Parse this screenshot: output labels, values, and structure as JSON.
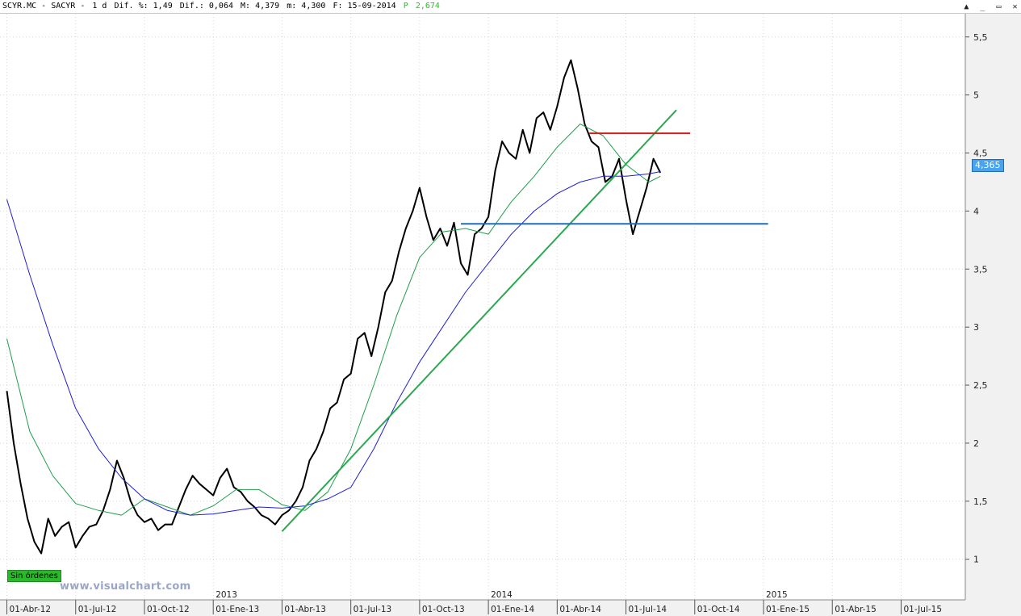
{
  "header": {
    "ticker": "SCYR.MC - SACYR -",
    "timeframe": "1 d",
    "pct_change": "Dif. %: 1,49",
    "abs_change": "Dif.: 0,064",
    "high": "M: 4,379",
    "low": "m: 4,300",
    "date": "F: 15-09-2014",
    "p_label": "P",
    "p_value": "2,674"
  },
  "window_buttons": [
    "▲",
    "_",
    "▭",
    "✕"
  ],
  "badge": "Sin órdenes",
  "watermark": "www.visualchart.com",
  "price_tag": "4,365",
  "chart_data": {
    "type": "line",
    "title": "",
    "x_tick_labels": [
      "01-Abr-12",
      "01-Jul-12",
      "01-Oct-12",
      "01-Ene-13",
      "01-Abr-13",
      "01-Jul-13",
      "01-Oct-13",
      "01-Ene-14",
      "01-Abr-14",
      "01-Jul-14",
      "01-Oct-14",
      "01-Ene-15",
      "01-Abr-15",
      "01-Jul-15"
    ],
    "x_tick_index": [
      0,
      3,
      6,
      9,
      12,
      15,
      18,
      21,
      24,
      27,
      30,
      33,
      36,
      39
    ],
    "year_labels": [
      {
        "label": "2013",
        "index": 9
      },
      {
        "label": "2014",
        "index": 21
      },
      {
        "label": "2015",
        "index": 33
      }
    ],
    "y_ticks": [
      1,
      1.5,
      2,
      2.5,
      3,
      3.5,
      4,
      4.5,
      5,
      5.5
    ],
    "y_tick_labels": [
      "1",
      "1,5",
      "2",
      "2,5",
      "3",
      "3,5",
      "4",
      "4,5",
      "5",
      "5,5"
    ],
    "ylim": [
      0.65,
      5.7
    ],
    "xlim": [
      -0.3,
      41.8
    ],
    "colors": {
      "price": "#000000",
      "ma_short": "#1e9e4a",
      "ma_long": "#1f1fd6",
      "trend": "#2aa84f",
      "support": "#1f6fb7",
      "resistance": "#d21e1e"
    },
    "series": [
      {
        "key": "price",
        "x": [
          0,
          0.3,
          0.6,
          0.9,
          1.2,
          1.5,
          1.8,
          2.1,
          2.4,
          2.7,
          3,
          3.3,
          3.6,
          3.9,
          4.2,
          4.5,
          4.8,
          5.1,
          5.4,
          5.7,
          6,
          6.3,
          6.6,
          6.9,
          7.2,
          7.5,
          7.8,
          8.1,
          8.4,
          8.7,
          9,
          9.3,
          9.6,
          9.9,
          10.2,
          10.5,
          10.8,
          11.1,
          11.4,
          11.7,
          12,
          12.3,
          12.6,
          12.9,
          13.2,
          13.5,
          13.8,
          14.1,
          14.4,
          14.7,
          15,
          15.3,
          15.6,
          15.9,
          16.2,
          16.5,
          16.8,
          17.1,
          17.4,
          17.7,
          18,
          18.3,
          18.6,
          18.9,
          19.2,
          19.5,
          19.8,
          20.1,
          20.4,
          20.7,
          21,
          21.3,
          21.6,
          21.9,
          22.2,
          22.5,
          22.8,
          23.1,
          23.4,
          23.7,
          24,
          24.3,
          24.6,
          24.9,
          25.2,
          25.5,
          25.8,
          26.1,
          26.4,
          26.7,
          27,
          27.3,
          27.6,
          27.9,
          28.2,
          28.5
        ],
        "values": [
          2.45,
          2.0,
          1.65,
          1.35,
          1.15,
          1.05,
          1.35,
          1.2,
          1.28,
          1.32,
          1.1,
          1.2,
          1.28,
          1.3,
          1.42,
          1.6,
          1.85,
          1.7,
          1.5,
          1.38,
          1.32,
          1.35,
          1.25,
          1.3,
          1.3,
          1.45,
          1.6,
          1.72,
          1.65,
          1.6,
          1.55,
          1.7,
          1.78,
          1.62,
          1.58,
          1.5,
          1.45,
          1.38,
          1.35,
          1.3,
          1.38,
          1.42,
          1.5,
          1.62,
          1.85,
          1.95,
          2.1,
          2.3,
          2.35,
          2.55,
          2.6,
          2.9,
          2.95,
          2.75,
          3.0,
          3.3,
          3.4,
          3.65,
          3.85,
          4.0,
          4.2,
          3.95,
          3.75,
          3.85,
          3.7,
          3.9,
          3.55,
          3.45,
          3.8,
          3.85,
          3.95,
          4.35,
          4.6,
          4.5,
          4.45,
          4.7,
          4.5,
          4.8,
          4.85,
          4.7,
          4.9,
          5.15,
          5.3,
          5.05,
          4.75,
          4.6,
          4.55,
          4.25,
          4.3,
          4.45,
          4.1,
          3.8,
          4.0,
          4.2,
          4.45,
          4.33
        ]
      },
      {
        "key": "ma_short",
        "x": [
          0,
          1,
          2,
          3,
          4,
          5,
          6,
          7,
          8,
          9,
          10,
          11,
          12,
          13,
          14,
          15,
          16,
          17,
          18,
          19,
          20,
          21,
          22,
          23,
          24,
          25,
          26,
          27,
          28,
          28.5
        ],
        "values": [
          2.9,
          2.1,
          1.72,
          1.48,
          1.42,
          1.38,
          1.52,
          1.45,
          1.38,
          1.46,
          1.6,
          1.6,
          1.47,
          1.42,
          1.58,
          1.95,
          2.5,
          3.1,
          3.6,
          3.82,
          3.85,
          3.8,
          4.08,
          4.3,
          4.55,
          4.75,
          4.65,
          4.4,
          4.25,
          4.3
        ]
      },
      {
        "key": "ma_long",
        "x": [
          0,
          1,
          2,
          3,
          4,
          5,
          6,
          7,
          8,
          9,
          10,
          11,
          12,
          13,
          14,
          15,
          16,
          17,
          18,
          19,
          20,
          21,
          22,
          23,
          24,
          25,
          26,
          27,
          28,
          28.5
        ],
        "values": [
          4.1,
          3.45,
          2.85,
          2.3,
          1.95,
          1.7,
          1.52,
          1.42,
          1.38,
          1.39,
          1.42,
          1.45,
          1.44,
          1.46,
          1.52,
          1.62,
          1.95,
          2.35,
          2.7,
          3.0,
          3.3,
          3.55,
          3.8,
          4.0,
          4.15,
          4.25,
          4.3,
          4.3,
          4.32,
          4.34
        ]
      }
    ],
    "trend_lines": [
      {
        "key": "trend",
        "x": [
          12,
          29.2
        ],
        "values": [
          1.24,
          4.87
        ]
      },
      {
        "key": "support",
        "x": [
          19.8,
          33.2
        ],
        "values": [
          3.89,
          3.89
        ]
      },
      {
        "key": "resistance",
        "x": [
          25.4,
          29.8
        ],
        "values": [
          4.67,
          4.67
        ]
      }
    ],
    "grid": true,
    "legend": "none"
  }
}
